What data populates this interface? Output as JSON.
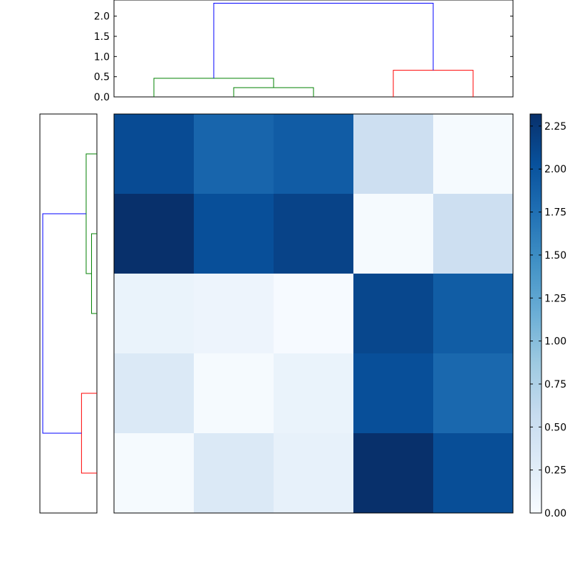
{
  "chart_data": [
    {
      "type": "dendrogram",
      "orientation": "top",
      "ylim": [
        0,
        2.4
      ],
      "yticks": [
        "0.0",
        "0.5",
        "1.0",
        "1.5",
        "2.0"
      ],
      "leaf_count": 5,
      "links": [
        {
          "left_leaf": 1,
          "right_leaf": 2,
          "height": 0.23,
          "color": "#008000"
        },
        {
          "left_leaf": 0,
          "right_leaf": 1.5,
          "height": 0.46,
          "color": "#008000"
        },
        {
          "left_leaf": 3,
          "right_leaf": 4,
          "height": 0.66,
          "color": "#ff0000"
        },
        {
          "left_leaf": 0.75,
          "right_leaf": 3.5,
          "height": 2.32,
          "color": "#0000ff"
        }
      ]
    },
    {
      "type": "dendrogram",
      "orientation": "left",
      "leaf_count": 5,
      "links": [
        {
          "left_leaf": 3,
          "right_leaf": 4,
          "height": 0.66,
          "color": "#ff0000"
        },
        {
          "left_leaf": 1,
          "right_leaf": 2,
          "height": 0.23,
          "color": "#008000"
        },
        {
          "left_leaf": 0,
          "right_leaf": 1.5,
          "height": 0.46,
          "color": "#008000"
        },
        {
          "left_leaf": 0.75,
          "right_leaf": 3.5,
          "height": 2.32,
          "color": "#0000ff"
        }
      ]
    },
    {
      "type": "heatmap",
      "rows": 5,
      "cols": 5,
      "values": [
        [
          2.08,
          1.85,
          1.93,
          0.5,
          0.02
        ],
        [
          2.32,
          2.05,
          2.15,
          0.02,
          0.5
        ],
        [
          0.15,
          0.12,
          0.01,
          2.12,
          1.92
        ],
        [
          0.33,
          0.02,
          0.15,
          2.05,
          1.82
        ],
        [
          0.02,
          0.33,
          0.18,
          2.32,
          2.06
        ]
      ],
      "colormap": "Blues",
      "vmin": 0,
      "vmax": 2.32,
      "colorbar_ticks": [
        "0.00",
        "0.25",
        "0.50",
        "0.75",
        "1.00",
        "1.25",
        "1.50",
        "1.75",
        "2.00",
        "2.25"
      ]
    }
  ]
}
